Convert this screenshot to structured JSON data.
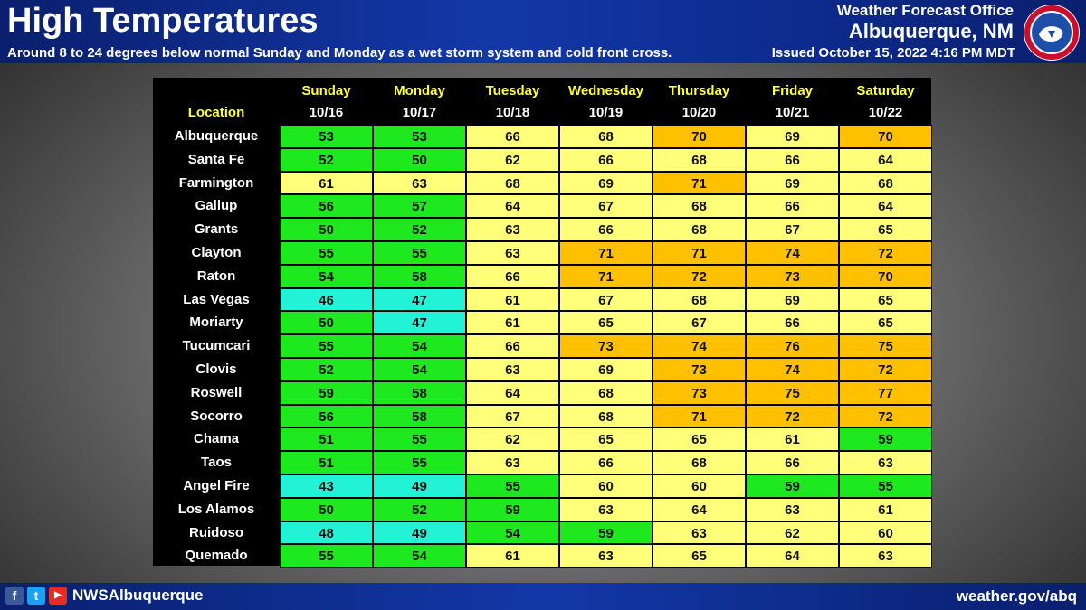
{
  "header": {
    "title": "High Temperatures",
    "subtitle": "Around 8 to 24 degrees below normal Sunday and Monday as a wet storm system and cold front cross.",
    "issued": "Issued October 15, 2022 4:16 PM MDT",
    "office_line1": "Weather Forecast Office",
    "office_line2": "Albuquerque, NM",
    "logo_icon": "nws-seal-icon"
  },
  "colors": {
    "cyan": "#22f2d6",
    "green": "#1ee81e",
    "yellow": "#ffff7a",
    "orange": "#ffc000"
  },
  "table": {
    "location_header": "Location",
    "columns": [
      {
        "day": "Sunday",
        "date": "10/16"
      },
      {
        "day": "Monday",
        "date": "10/17"
      },
      {
        "day": "Tuesday",
        "date": "10/18"
      },
      {
        "day": "Wednesday",
        "date": "10/19"
      },
      {
        "day": "Thursday",
        "date": "10/20"
      },
      {
        "day": "Friday",
        "date": "10/21"
      },
      {
        "day": "Saturday",
        "date": "10/22"
      }
    ],
    "rows": [
      {
        "location": "Albuquerque",
        "values": [
          53,
          53,
          66,
          68,
          70,
          69,
          70
        ]
      },
      {
        "location": "Santa Fe",
        "values": [
          52,
          50,
          62,
          66,
          68,
          66,
          64
        ]
      },
      {
        "location": "Farmington",
        "values": [
          61,
          63,
          68,
          69,
          71,
          69,
          68
        ]
      },
      {
        "location": "Gallup",
        "values": [
          56,
          57,
          64,
          67,
          68,
          66,
          64
        ]
      },
      {
        "location": "Grants",
        "values": [
          50,
          52,
          63,
          66,
          68,
          67,
          65
        ]
      },
      {
        "location": "Clayton",
        "values": [
          55,
          55,
          63,
          71,
          71,
          74,
          72
        ]
      },
      {
        "location": "Raton",
        "values": [
          54,
          58,
          66,
          71,
          72,
          73,
          70
        ]
      },
      {
        "location": "Las Vegas",
        "values": [
          46,
          47,
          61,
          67,
          68,
          69,
          65
        ]
      },
      {
        "location": "Moriarty",
        "values": [
          50,
          47,
          61,
          65,
          67,
          66,
          65
        ]
      },
      {
        "location": "Tucumcari",
        "values": [
          55,
          54,
          66,
          73,
          74,
          76,
          75
        ]
      },
      {
        "location": "Clovis",
        "values": [
          52,
          54,
          63,
          69,
          73,
          74,
          72
        ]
      },
      {
        "location": "Roswell",
        "values": [
          59,
          58,
          64,
          68,
          73,
          75,
          77
        ]
      },
      {
        "location": "Socorro",
        "values": [
          56,
          58,
          67,
          68,
          71,
          72,
          72
        ]
      },
      {
        "location": "Chama",
        "values": [
          51,
          55,
          62,
          65,
          65,
          61,
          59
        ]
      },
      {
        "location": "Taos",
        "values": [
          51,
          55,
          63,
          66,
          68,
          66,
          63
        ]
      },
      {
        "location": "Angel Fire",
        "values": [
          43,
          49,
          55,
          60,
          60,
          59,
          55
        ]
      },
      {
        "location": "Los Alamos",
        "values": [
          50,
          52,
          59,
          63,
          64,
          63,
          61
        ]
      },
      {
        "location": "Ruidoso",
        "values": [
          48,
          49,
          54,
          59,
          63,
          62,
          60
        ]
      },
      {
        "location": "Quemado",
        "values": [
          55,
          54,
          61,
          63,
          65,
          64,
          63
        ]
      }
    ]
  },
  "footer": {
    "facebook_icon": "facebook-icon",
    "twitter_icon": "twitter-icon",
    "youtube_icon": "youtube-icon",
    "handle": "NWSAlbuquerque",
    "website": "weather.gov/abq"
  }
}
